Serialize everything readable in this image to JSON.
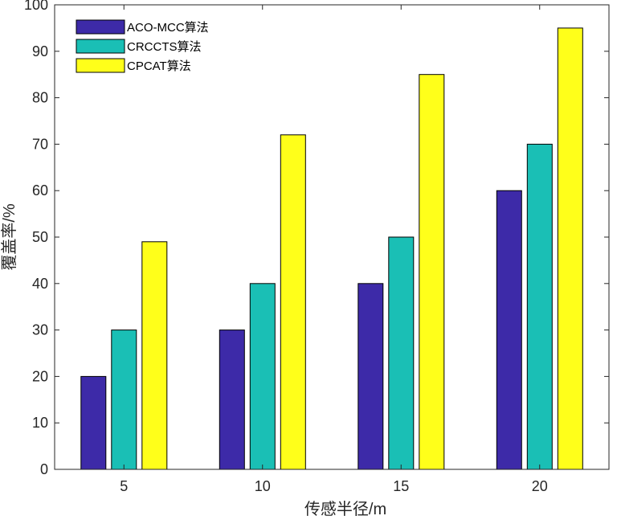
{
  "chart_data": {
    "type": "bar",
    "title": "",
    "xlabel": "传感半径/m",
    "ylabel": "覆盖率/%",
    "categories": [
      "5",
      "10",
      "15",
      "20"
    ],
    "ylim": [
      0,
      100
    ],
    "yticks": [
      "0",
      "10",
      "20",
      "30",
      "40",
      "50",
      "60",
      "70",
      "80",
      "90",
      "100"
    ],
    "grid": false,
    "legend_position": "top-left",
    "series": [
      {
        "name": "ACO-MCC算法",
        "values": [
          20,
          30,
          40,
          60
        ],
        "color": "#3d2aa8"
      },
      {
        "name": "CRCCTS算法",
        "values": [
          30,
          40,
          50,
          70
        ],
        "color": "#1abfb5"
      },
      {
        "name": "CPCAT算法",
        "values": [
          49,
          72,
          85,
          95
        ],
        "color": "#ffff1a"
      }
    ]
  }
}
